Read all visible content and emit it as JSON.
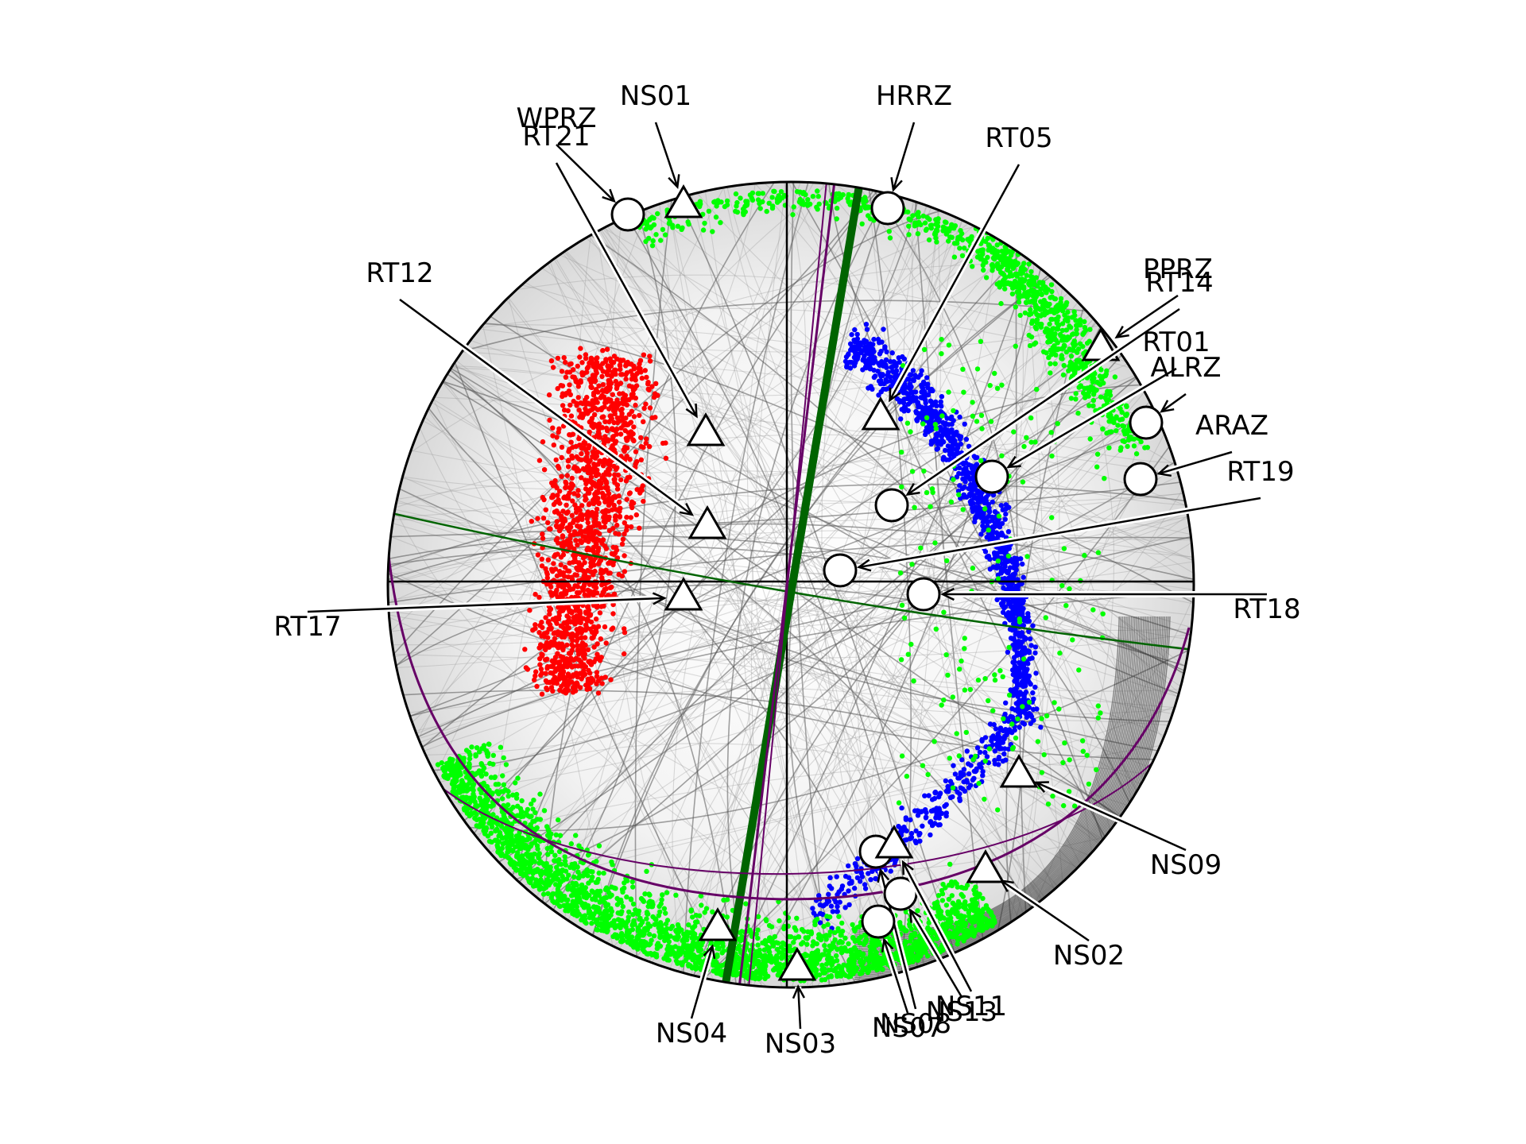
{
  "figure": {
    "stations": [
      {
        "id": "WPRZ",
        "symbol": "circle",
        "label": "WPRZ"
      },
      {
        "id": "NS01",
        "symbol": "triangle",
        "label": "NS01"
      },
      {
        "id": "RT21",
        "symbol": "triangle",
        "label": "RT21"
      },
      {
        "id": "HRRZ",
        "symbol": "circle",
        "label": "HRRZ"
      },
      {
        "id": "RT05",
        "symbol": "triangle",
        "label": "RT05"
      },
      {
        "id": "RT12",
        "symbol": "triangle",
        "label": "RT12"
      },
      {
        "id": "PPRZ",
        "symbol": "triangle",
        "label": "PPRZ"
      },
      {
        "id": "RT14",
        "symbol": "circle",
        "label": "RT14"
      },
      {
        "id": "RT01",
        "symbol": "circle",
        "label": "RT01"
      },
      {
        "id": "ALRZ",
        "symbol": "circle",
        "label": "ALRZ"
      },
      {
        "id": "ARAZ",
        "symbol": "circle",
        "label": "ARAZ"
      },
      {
        "id": "RT19",
        "symbol": "circle",
        "label": "RT19"
      },
      {
        "id": "RT17",
        "symbol": "triangle",
        "label": "RT17"
      },
      {
        "id": "RT18",
        "symbol": "circle",
        "label": "RT18"
      },
      {
        "id": "NS09",
        "symbol": "triangle",
        "label": "NS09"
      },
      {
        "id": "NS02",
        "symbol": "triangle",
        "label": "NS02"
      },
      {
        "id": "NS04",
        "symbol": "triangle",
        "label": "NS04"
      },
      {
        "id": "NS03",
        "symbol": "triangle",
        "label": "NS03"
      },
      {
        "id": "NS08",
        "symbol": "circle",
        "label": "NS08"
      },
      {
        "id": "NS13",
        "symbol": "circle",
        "label": "NS13"
      },
      {
        "id": "NS11",
        "symbol": "triangle",
        "label": "NS11"
      },
      {
        "id": "NS07",
        "symbol": "circle",
        "label": "NS07"
      }
    ],
    "colors": {
      "p_axis": "#ff0000",
      "t_axis": "#00ff00",
      "b_axis": "#0000ff",
      "best_plane": "#006400",
      "alt_plane": "#660066",
      "nodal_lines": "#000000",
      "background_curves": "#9a9a9a"
    }
  }
}
